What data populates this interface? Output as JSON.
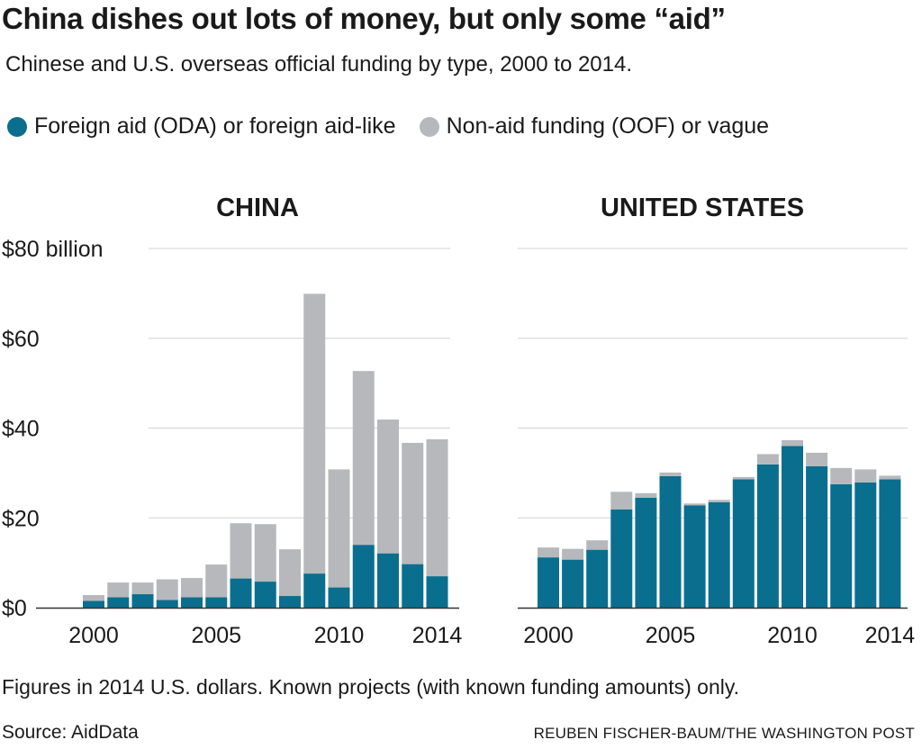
{
  "title": "China dishes out lots of money, but only some “aid”",
  "subtitle": "Chinese and U.S. overseas official funding by type, 2000 to 2014.",
  "legend": [
    {
      "label": "Foreign aid (ODA) or foreign aid-like",
      "color": "#0a6e8f"
    },
    {
      "label": "Non-aid funding (OOF) or vague",
      "color": "#b6b8bb"
    }
  ],
  "note": "Figures in 2014 U.S. dollars. Known projects (with known funding amounts) only.",
  "source": "Source: AidData",
  "credit": "REUBEN FISCHER-BAUM/THE WASHINGTON POST",
  "chart_data": [
    {
      "type": "bar",
      "stacked": true,
      "title": "CHINA",
      "categories": [
        2000,
        2001,
        2002,
        2003,
        2004,
        2005,
        2006,
        2007,
        2008,
        2009,
        2010,
        2011,
        2012,
        2013,
        2014
      ],
      "x_tick_labels": [
        "2000",
        "2005",
        "2010",
        "2014"
      ],
      "y_tick_labels": [
        "$80 billion",
        "$60",
        "$40",
        "$20",
        "$0"
      ],
      "y_ticks": [
        80,
        60,
        40,
        20,
        0
      ],
      "ylim": [
        0,
        80
      ],
      "grid": true,
      "series": [
        {
          "name": "Foreign aid (ODA) or foreign aid-like",
          "color": "#0a6e8f",
          "values": [
            1.5,
            2.3,
            3.0,
            1.7,
            2.3,
            2.3,
            6.5,
            5.8,
            2.6,
            7.6,
            4.5,
            14.0,
            12.1,
            9.7,
            7.0
          ]
        },
        {
          "name": "Non-aid funding (OOF) or vague",
          "color": "#b6b8bb",
          "values": [
            1.3,
            3.3,
            2.6,
            4.6,
            4.3,
            7.3,
            12.3,
            12.8,
            10.4,
            62.3,
            26.3,
            38.7,
            29.8,
            27.0,
            30.5
          ]
        }
      ]
    },
    {
      "type": "bar",
      "stacked": true,
      "title": "UNITED STATES",
      "categories": [
        2000,
        2001,
        2002,
        2003,
        2004,
        2005,
        2006,
        2007,
        2008,
        2009,
        2010,
        2011,
        2012,
        2013,
        2014
      ],
      "x_tick_labels": [
        "2000",
        "2005",
        "2010",
        "2014"
      ],
      "ylim": [
        0,
        80
      ],
      "grid": true,
      "series": [
        {
          "name": "Foreign aid (ODA) or foreign aid-like",
          "color": "#0a6e8f",
          "values": [
            11.2,
            10.7,
            12.9,
            21.9,
            24.5,
            29.3,
            22.8,
            23.5,
            28.6,
            31.9,
            36.0,
            31.5,
            27.5,
            27.9,
            28.6
          ]
        },
        {
          "name": "Non-aid funding (OOF) or vague",
          "color": "#b6b8bb",
          "values": [
            2.2,
            2.4,
            2.1,
            3.9,
            1.0,
            0.8,
            0.4,
            0.5,
            0.5,
            2.3,
            1.3,
            3.0,
            3.6,
            2.9,
            0.8
          ]
        }
      ]
    }
  ]
}
